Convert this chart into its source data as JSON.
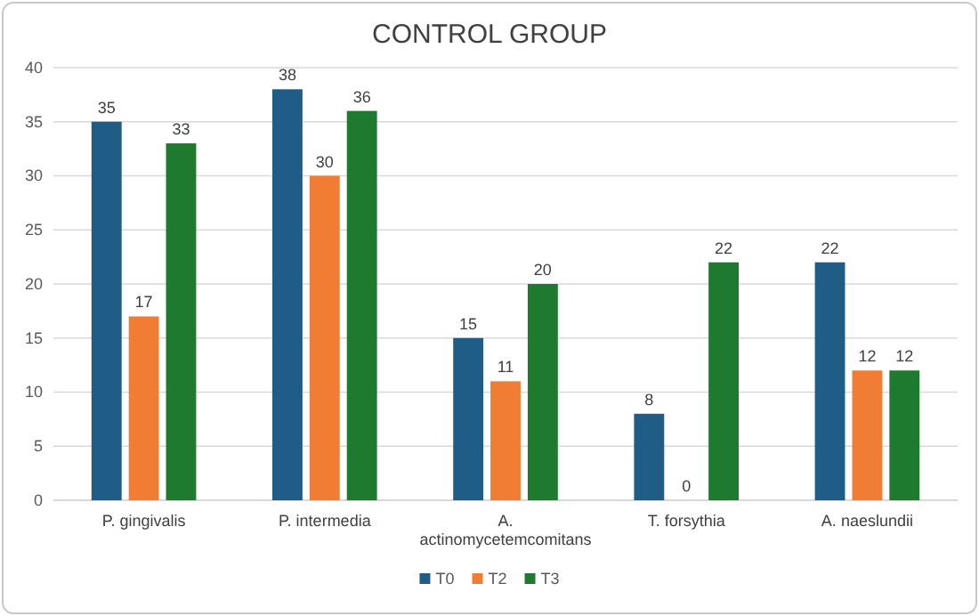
{
  "chart_data": {
    "type": "bar",
    "title": "CONTROL GROUP",
    "categories": [
      "P. gingivalis",
      "P. intermedia",
      "A. actinomycetemcomitans",
      "T. forsythia",
      "A. naeslundii"
    ],
    "series": [
      {
        "name": "T0",
        "color": "#1f5c86",
        "values": [
          35,
          38,
          15,
          8,
          22
        ]
      },
      {
        "name": "T2",
        "color": "#f07d33",
        "values": [
          17,
          30,
          11,
          0,
          12
        ]
      },
      {
        "name": "T3",
        "color": "#1d7a2e",
        "values": [
          33,
          36,
          20,
          22,
          12
        ]
      }
    ],
    "ylim": [
      0,
      40
    ],
    "yticks": [
      0,
      5,
      10,
      15,
      20,
      25,
      30,
      35,
      40
    ],
    "grid": "y",
    "legend": "bottom",
    "data_labels": true
  }
}
